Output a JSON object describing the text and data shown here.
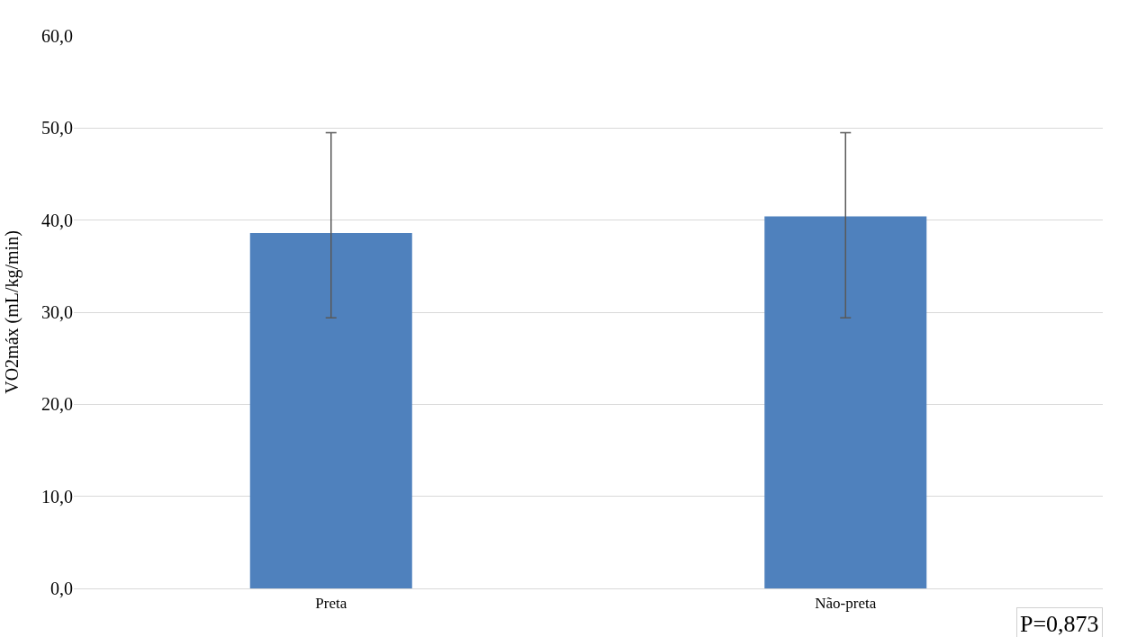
{
  "chart_data": {
    "type": "bar",
    "ylabel": "VO2máx (mL/kg/min)",
    "categories": [
      "Preta",
      "Não-preta"
    ],
    "values": [
      38.6,
      40.4
    ],
    "errors": [
      [
        29.4,
        49.5
      ],
      [
        29.4,
        49.5
      ]
    ],
    "color": "#4f81bd",
    "ylim": [
      0,
      60
    ],
    "yticks": [
      {
        "value": 0,
        "label": "0,0"
      },
      {
        "value": 10,
        "label": "10,0"
      },
      {
        "value": 20,
        "label": "20,0"
      },
      {
        "value": 30,
        "label": "30,0"
      },
      {
        "value": 40,
        "label": "40,0"
      },
      {
        "value": 50,
        "label": "50,0"
      },
      {
        "value": 60,
        "label": "60,0"
      }
    ],
    "grid": "y",
    "annotations": [
      "P=0,873"
    ]
  }
}
